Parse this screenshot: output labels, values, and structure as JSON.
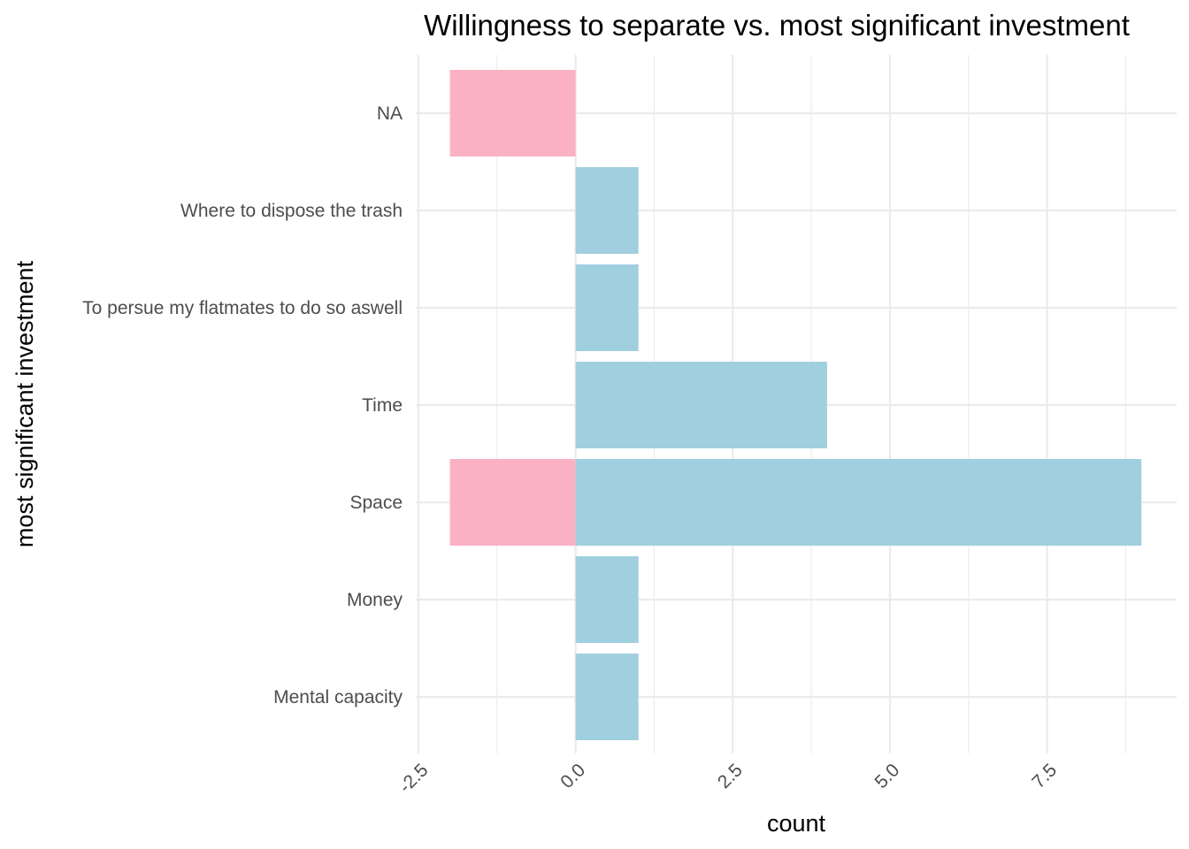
{
  "chart_data": {
    "type": "bar",
    "orientation": "horizontal",
    "title": "Willingness to separate vs. most significant investment",
    "xlabel": "count",
    "ylabel": "most significant investment",
    "categories": [
      "Mental capacity",
      "Money",
      "Space",
      "Time",
      "To persue my flatmates to do so aswell",
      "Where to dispose the trash",
      "NA"
    ],
    "series": [
      {
        "color": "#fbb1c4",
        "values": [
          0,
          0,
          -2,
          0,
          0,
          0,
          -2
        ]
      },
      {
        "color": "#a0cfe0",
        "values": [
          1,
          1,
          9,
          4,
          1,
          1,
          0
        ]
      }
    ],
    "xlim": [
      -2.5,
      9.0
    ],
    "xticks": [
      -2.5,
      0.0,
      2.5,
      5.0,
      7.5
    ],
    "xtick_labels": [
      "-2.5",
      "0.0",
      "2.5",
      "5.0",
      "7.5"
    ],
    "grid": true,
    "legend": "none"
  }
}
